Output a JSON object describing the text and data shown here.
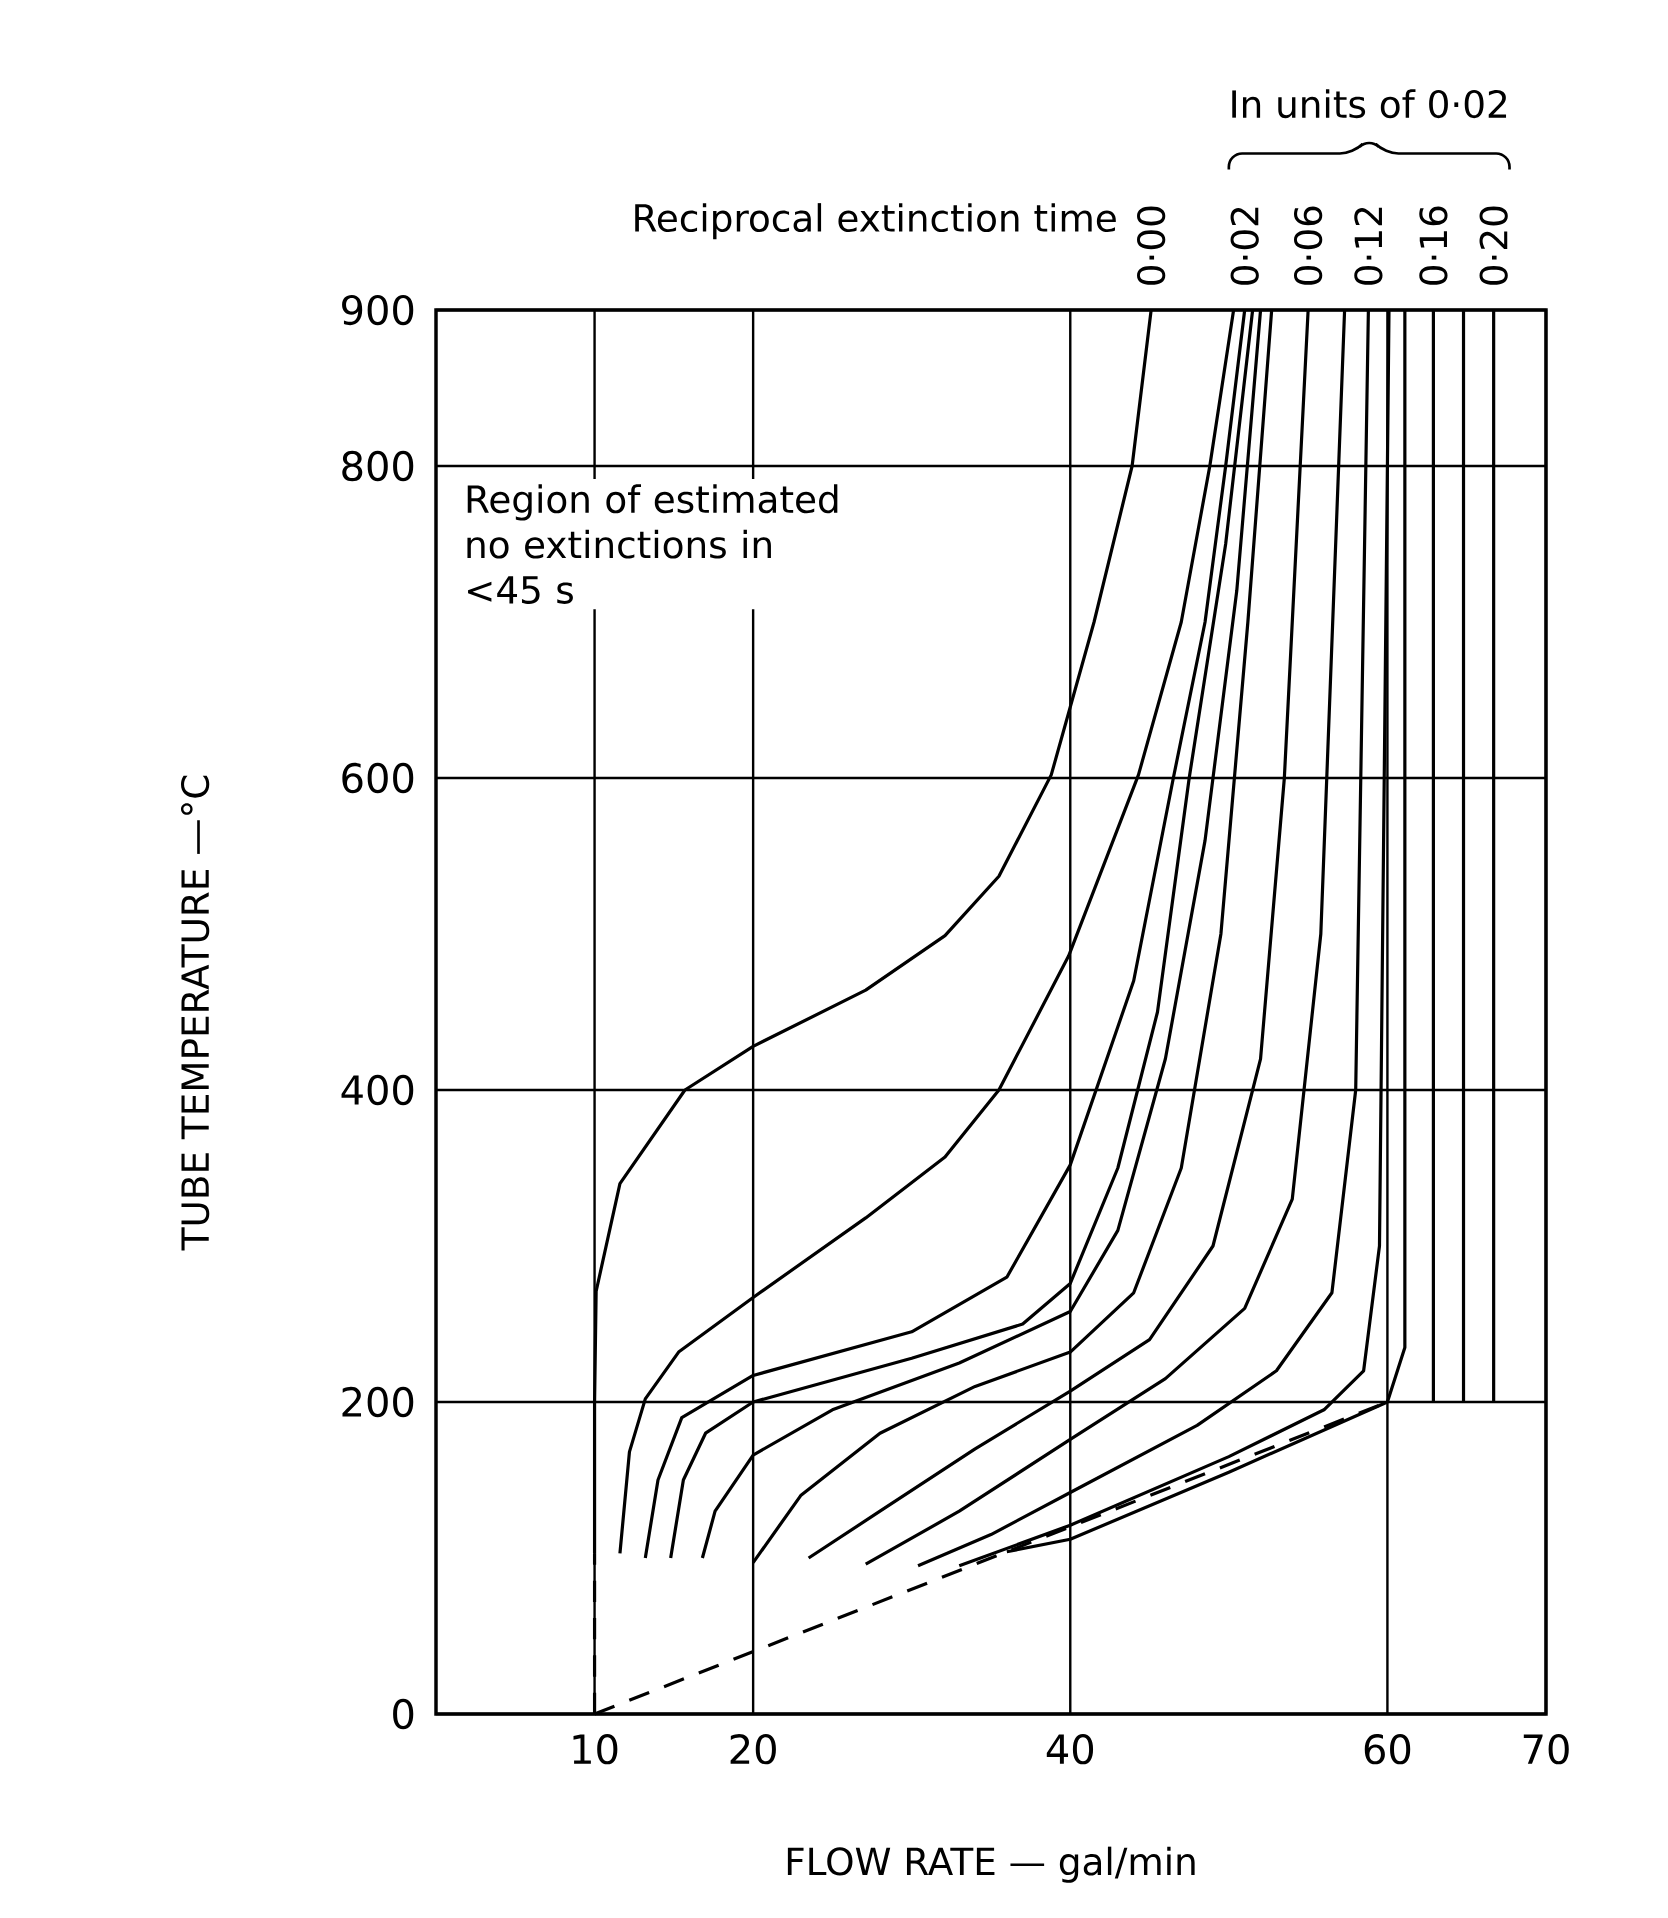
{
  "chart_data": {
    "type": "line",
    "xlabel": "FLOW RATE — gal/min",
    "ylabel": "TUBE TEMPERATURE —°C",
    "xlim": [
      0,
      70
    ],
    "ylim": [
      0,
      900
    ],
    "xticks": [
      10,
      20,
      40,
      60,
      70
    ],
    "yticks": [
      0,
      200,
      400,
      600,
      800,
      900
    ],
    "grid": true,
    "annotations": [
      "Region of estimated no extinctions in <45 s",
      "In units of 0·02",
      "Reciprocal extinction time"
    ],
    "series": [
      {
        "name": "0·00",
        "color": "#000000",
        "x": [
          10,
          10,
          10.1,
          11.6,
          15.7,
          20,
          27.1,
          32.1,
          35.5,
          38.8,
          41.5,
          43.9,
          45.1
        ],
        "values": [
          103,
          200,
          271,
          340,
          400,
          428,
          464,
          499,
          537,
          602,
          700,
          800,
          900
        ]
      },
      {
        "color": "#000000",
        "x": [
          11.6,
          12.2,
          13.2,
          15.3,
          20,
          27.1,
          32.1,
          35.5,
          39.9,
          44.3,
          47,
          48.8,
          50.3
        ],
        "values": [
          103,
          168,
          202,
          232,
          267,
          318,
          357,
          400,
          486,
          602,
          700,
          800,
          900
        ]
      },
      {
        "name": "0·02",
        "color": "#000000",
        "x": [
          13.2,
          14,
          15.5,
          20,
          30,
          36,
          40,
          44,
          46.5,
          48.5,
          49.8,
          51.0
        ],
        "values": [
          100,
          150,
          190,
          217,
          245,
          280,
          352,
          470,
          600,
          700,
          800,
          900
        ]
      },
      {
        "color": "#000000",
        "x": [
          14.8,
          15.6,
          17,
          20,
          30,
          37,
          40,
          43,
          45.5,
          47.5,
          49.8,
          51.5
        ],
        "values": [
          100,
          150,
          180,
          200,
          228,
          250,
          276,
          350,
          450,
          600,
          750,
          900
        ]
      },
      {
        "color": "#000000",
        "x": [
          16.8,
          17.6,
          20,
          25,
          33,
          40,
          43,
          46,
          48.5,
          50.5,
          52.0
        ],
        "values": [
          100,
          130,
          166,
          195,
          225,
          258,
          310,
          420,
          560,
          720,
          900
        ]
      },
      {
        "color": "#000000",
        "x": [
          20,
          23,
          28,
          34,
          40,
          44,
          47,
          49.5,
          51.2,
          52.7
        ],
        "values": [
          97,
          140,
          180,
          210,
          232,
          270,
          350,
          500,
          700,
          900
        ]
      },
      {
        "name": "0·06",
        "color": "#000000",
        "x": [
          23.5,
          28,
          34,
          40,
          45,
          49,
          52,
          53.5,
          55.0
        ],
        "values": [
          100,
          130,
          170,
          207,
          240,
          300,
          420,
          600,
          900
        ]
      },
      {
        "color": "#000000",
        "x": [
          27.1,
          33,
          40,
          46,
          51,
          54,
          55.8,
          57.3
        ],
        "values": [
          96,
          130,
          176,
          215,
          260,
          330,
          500,
          900
        ]
      },
      {
        "name": "0·12",
        "color": "#000000",
        "x": [
          30.4,
          35,
          40,
          48,
          53,
          56.5,
          58,
          58.8
        ],
        "values": [
          95,
          115,
          142,
          185,
          220,
          270,
          400,
          900
        ]
      },
      {
        "color": "#000000",
        "x": [
          33,
          40,
          50,
          56,
          58.5,
          59.5,
          60.1
        ],
        "values": [
          95,
          121,
          165,
          195,
          220,
          300,
          900
        ]
      },
      {
        "color": "#000000",
        "x": [
          36,
          40,
          50,
          60,
          61.1,
          61.1
        ],
        "values": [
          104,
          112,
          155,
          200,
          235,
          900
        ]
      },
      {
        "name": "0·16",
        "color": "#000000",
        "x": [
          62.9,
          62.9
        ],
        "values": [
          200,
          900
        ]
      },
      {
        "color": "#000000",
        "x": [
          64.8,
          64.8
        ],
        "values": [
          200,
          900
        ]
      },
      {
        "name": "0·20",
        "color": "#000000",
        "x": [
          66.7,
          66.7
        ],
        "values": [
          200,
          900
        ]
      },
      {
        "color": "#000000",
        "x": [
          10,
          10
        ],
        "values": [
          0,
          103
        ],
        "line_style": "dashed"
      },
      {
        "color": "#000000",
        "x": [
          10,
          60
        ],
        "values": [
          0,
          200
        ],
        "line_style": "dashed"
      }
    ]
  }
}
